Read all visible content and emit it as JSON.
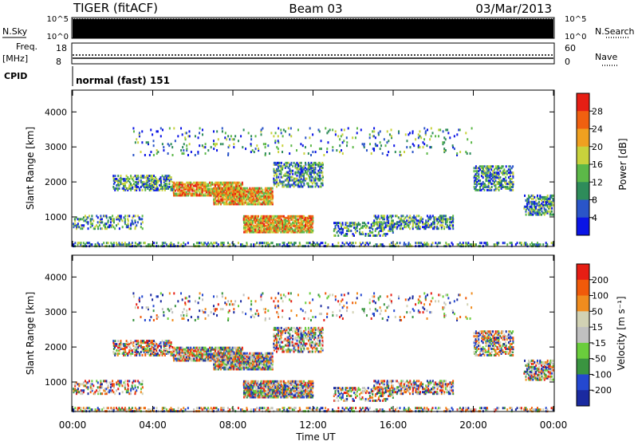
{
  "header": {
    "radar": "TIGER (fitACF)",
    "beam": "Beam 03",
    "date": "03/Mar/2013"
  },
  "status_panels": {
    "nsky_label": "N.Sky",
    "nsearch_label": "N.Search",
    "noise_ticks_left": [
      "10^5",
      "10^0"
    ],
    "noise_ticks_right": [
      "10^5",
      "10^0"
    ],
    "freq_label_line1": "Freq.",
    "freq_label_line2": "[MHz]",
    "freq_ticks": [
      "18",
      "8"
    ],
    "nave_label": "Nave",
    "nave_ticks": [
      "60",
      "0"
    ],
    "cpid_label": "CPID",
    "cpid_value": "normal (fast) 151"
  },
  "colors": {
    "power_scale": [
      "#0a14e6",
      "#2a55c8",
      "#2e8c5a",
      "#5cb848",
      "#c8d23c",
      "#f0a020",
      "#f06010",
      "#e61e14"
    ],
    "velocity_scale": [
      "#1a2aa0",
      "#2448d0",
      "#3a9440",
      "#6acd3c",
      "#c0c0c0",
      "#d2d2b4",
      "#f08c1e",
      "#f05a0a",
      "#e61e14"
    ]
  },
  "chart_data": [
    {
      "type": "heatmap",
      "name": "Power panel",
      "xlabel": "Time UT",
      "ylabel": "Slant Range [km]",
      "xticks": [
        "00:00",
        "04:00",
        "08:00",
        "12:00",
        "16:00",
        "20:00",
        "00:00"
      ],
      "yticks": [
        "1000",
        "2000",
        "3000",
        "4000"
      ],
      "xlim_hours": [
        0,
        24
      ],
      "ylim_km": [
        180,
        4600
      ],
      "colorbar_label": "Power [dB]",
      "colorbar_ticks": [
        "28",
        "24",
        "20",
        "16",
        "12",
        "8",
        "4"
      ],
      "colorbar_range": [
        0,
        30
      ]
    },
    {
      "type": "heatmap",
      "name": "Velocity panel",
      "xlabel": "Time UT",
      "ylabel": "Slant Range [km]",
      "xticks": [
        "00:00",
        "04:00",
        "08:00",
        "12:00",
        "16:00",
        "20:00",
        "00:00"
      ],
      "yticks": [
        "1000",
        "2000",
        "3000",
        "4000"
      ],
      "xlim_hours": [
        0,
        24
      ],
      "ylim_km": [
        180,
        4600
      ],
      "colorbar_label": "Velocity [m s⁻¹]",
      "colorbar_ticks": [
        "200",
        "100",
        "50",
        "15",
        "-15",
        "-50",
        "-100",
        "-200"
      ],
      "colorbar_range": [
        -250,
        250
      ]
    }
  ]
}
